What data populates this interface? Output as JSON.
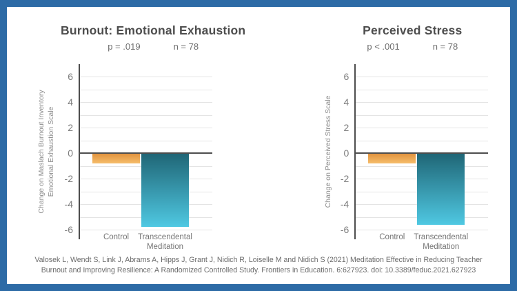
{
  "frame": {
    "border_color": "#2d6ba6",
    "background": "#ffffff"
  },
  "colors": {
    "title_text": "#4d4d4d",
    "axis_line": "#4d4d4d",
    "gridline": "#e4e4e4",
    "tick_text": "#7d7d7d",
    "control_bar_gradient": [
      "#e0913c",
      "#f6bd6b"
    ],
    "tm_bar_gradient": [
      "#1f6575",
      "#4fc8e2"
    ]
  },
  "chart_data": [
    {
      "type": "bar",
      "title": "Burnout: Emotional Exhaustion",
      "p_label": "p = .019",
      "n_label": "n = 78",
      "ylabel": "Change on Maslach Burnout Inventory\nEmotional Exhaustion Scale",
      "categories": [
        "Control",
        "Transcendental Meditation"
      ],
      "values": [
        -0.8,
        -5.8
      ],
      "ylim": [
        -6,
        6
      ],
      "ytick_step": 2,
      "grid_step": 1,
      "legend": "none",
      "grid": true,
      "bar_colors": [
        [
          "#e0913c",
          "#f6bd6b"
        ],
        [
          "#1f6575",
          "#4fc8e2"
        ]
      ]
    },
    {
      "type": "bar",
      "title": "Perceived Stress",
      "p_label": "p < .001",
      "n_label": "n = 78",
      "ylabel": "Change on Perceived Stress Scale",
      "categories": [
        "Control",
        "Transcendental Meditation"
      ],
      "values": [
        -0.8,
        -5.6
      ],
      "ylim": [
        -6,
        6
      ],
      "ytick_step": 2,
      "grid_step": 1,
      "legend": "none",
      "grid": true,
      "bar_colors": [
        [
          "#e0913c",
          "#f6bd6b"
        ],
        [
          "#1f6575",
          "#4fc8e2"
        ]
      ]
    }
  ],
  "citation": "Valosek L, Wendt S, Link J, Abrams A, Hipps J, Grant J, Nidich R, Loiselle M and Nidich S (2021) Meditation Effective in Reducing Teacher Burnout and Improving Resilience: A Randomized Controlled Study. Frontiers in Education. 6:627923. doi: 10.3389/feduc.2021.627923"
}
